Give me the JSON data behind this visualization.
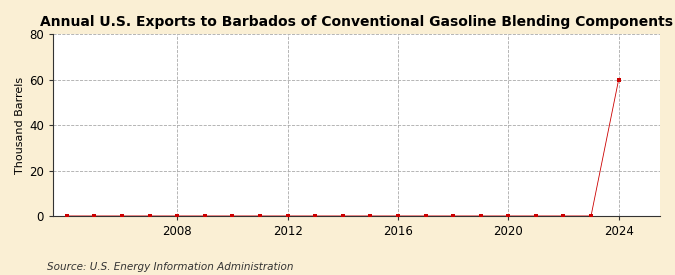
{
  "title": "Annual U.S. Exports to Barbados of Conventional Gasoline Blending Components",
  "ylabel": "Thousand Barrels",
  "source": "Source: U.S. Energy Information Administration",
  "background_color": "#faefd4",
  "plot_background": "#ffffff",
  "years": [
    2004,
    2005,
    2006,
    2007,
    2008,
    2009,
    2010,
    2011,
    2012,
    2013,
    2014,
    2015,
    2016,
    2017,
    2018,
    2019,
    2020,
    2021,
    2022,
    2023,
    2024
  ],
  "values": [
    0,
    0,
    0,
    0,
    0,
    0,
    0,
    0,
    0,
    0,
    0,
    0,
    0,
    0,
    0,
    0,
    0,
    0,
    0,
    0,
    60
  ],
  "marker_color": "#cc0000",
  "line_color": "#cc0000",
  "ylim": [
    0,
    80
  ],
  "yticks": [
    0,
    20,
    40,
    60,
    80
  ],
  "xlim": [
    2003.5,
    2025.5
  ],
  "xticks": [
    2008,
    2012,
    2016,
    2020,
    2024
  ],
  "grid_color": "#aaaaaa",
  "grid_linestyle": "--",
  "title_fontsize": 10,
  "axis_fontsize": 8,
  "tick_fontsize": 8.5,
  "source_fontsize": 7.5
}
